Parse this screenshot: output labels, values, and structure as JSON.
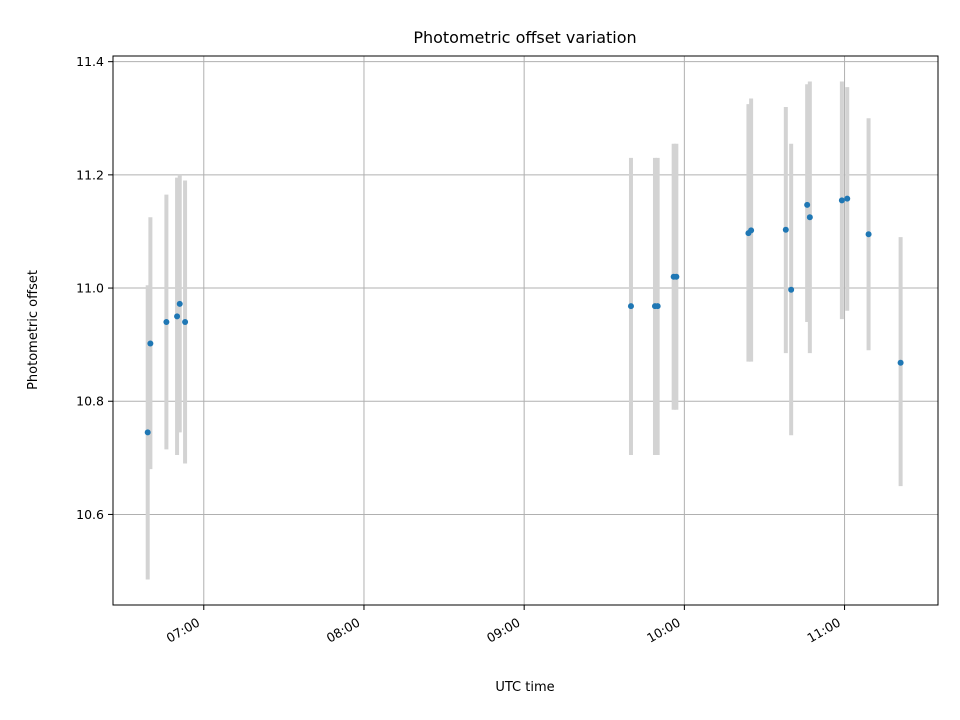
{
  "chart_data": {
    "type": "scatter",
    "title": "Photometric offset variation",
    "xlabel": "UTC time",
    "ylabel": "Photometric offset",
    "x_unit": "UTC time (HH:MM)",
    "xlim": [
      "06:26",
      "11:35"
    ],
    "ylim": [
      10.44,
      11.41
    ],
    "x_ticks": [
      "07:00",
      "08:00",
      "09:00",
      "10:00",
      "11:00"
    ],
    "y_ticks": [
      10.6,
      10.8,
      11.0,
      11.2,
      11.4
    ],
    "y_tick_labels": [
      "10.6",
      "10.8",
      "11.0",
      "11.2",
      "11.4"
    ],
    "grid": true,
    "series": [
      {
        "marker_color": "#1f77b4",
        "errorbar_color": "#d3d3d3",
        "points": [
          {
            "t": "06:39",
            "y": 10.745,
            "err_low": 10.485,
            "err_high": 11.005
          },
          {
            "t": "06:40",
            "y": 10.902,
            "err_low": 10.68,
            "err_high": 11.125
          },
          {
            "t": "06:46",
            "y": 10.94,
            "err_low": 10.715,
            "err_high": 11.165
          },
          {
            "t": "06:50",
            "y": 10.95,
            "err_low": 10.705,
            "err_high": 11.195
          },
          {
            "t": "06:51",
            "y": 10.972,
            "err_low": 10.745,
            "err_high": 11.2
          },
          {
            "t": "06:53",
            "y": 10.94,
            "err_low": 10.69,
            "err_high": 11.19
          },
          {
            "t": "09:40",
            "y": 10.968,
            "err_low": 10.705,
            "err_high": 11.23
          },
          {
            "t": "09:49",
            "y": 10.968,
            "err_low": 10.705,
            "err_high": 11.23
          },
          {
            "t": "09:50",
            "y": 10.968,
            "err_low": 10.705,
            "err_high": 11.23
          },
          {
            "t": "09:56",
            "y": 11.02,
            "err_low": 10.785,
            "err_high": 11.255
          },
          {
            "t": "09:57",
            "y": 11.02,
            "err_low": 10.785,
            "err_high": 11.255
          },
          {
            "t": "10:24",
            "y": 11.097,
            "err_low": 10.87,
            "err_high": 11.325
          },
          {
            "t": "10:25",
            "y": 11.102,
            "err_low": 10.87,
            "err_high": 11.335
          },
          {
            "t": "10:38",
            "y": 11.103,
            "err_low": 10.885,
            "err_high": 11.32
          },
          {
            "t": "10:40",
            "y": 10.997,
            "err_low": 10.74,
            "err_high": 11.255
          },
          {
            "t": "10:46",
            "y": 11.147,
            "err_low": 10.94,
            "err_high": 11.36
          },
          {
            "t": "10:47",
            "y": 11.125,
            "err_low": 10.885,
            "err_high": 11.365
          },
          {
            "t": "10:59",
            "y": 11.155,
            "err_low": 10.945,
            "err_high": 11.365
          },
          {
            "t": "11:01",
            "y": 11.158,
            "err_low": 10.96,
            "err_high": 11.355
          },
          {
            "t": "11:09",
            "y": 11.095,
            "err_low": 10.89,
            "err_high": 11.3
          },
          {
            "t": "11:21",
            "y": 10.868,
            "err_low": 10.65,
            "err_high": 11.09
          }
        ]
      }
    ]
  }
}
